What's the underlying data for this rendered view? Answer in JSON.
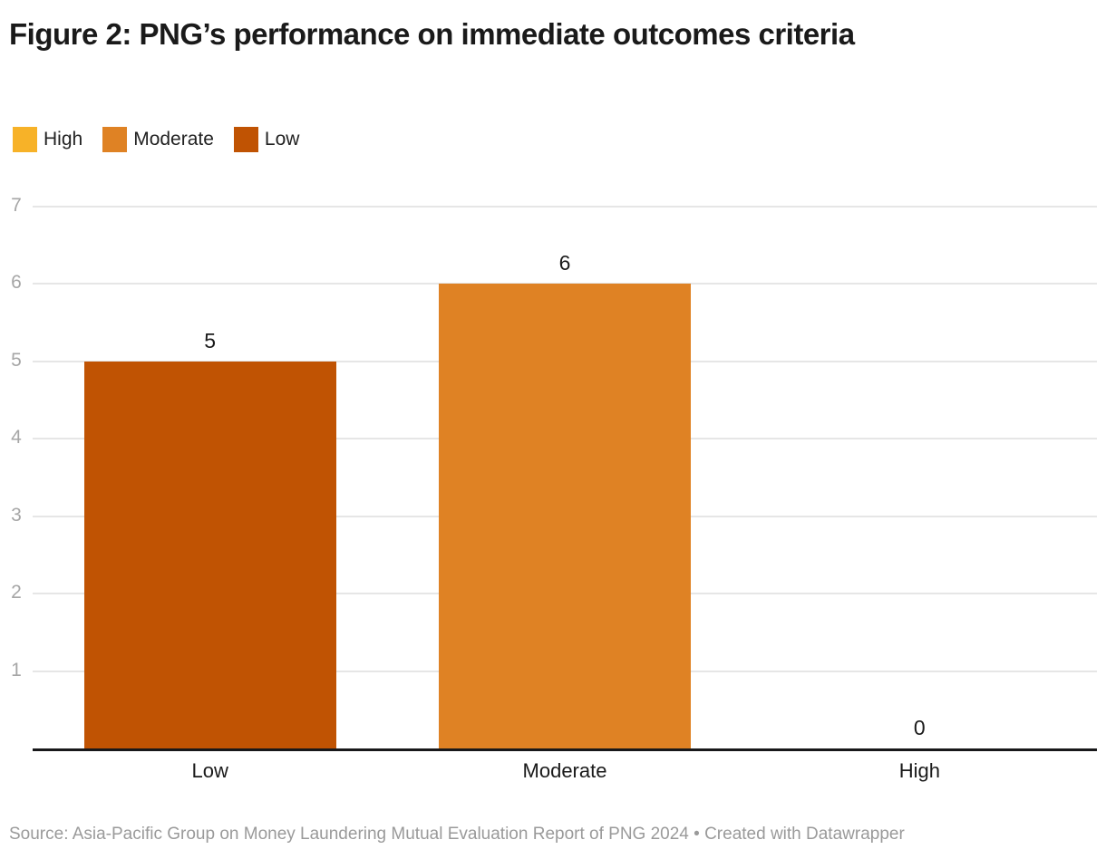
{
  "title": "Figure 2: PNG’s performance on immediate outcomes criteria",
  "legend": {
    "items": [
      {
        "label": "High",
        "color": "#F7B228"
      },
      {
        "label": "Moderate",
        "color": "#DF8224"
      },
      {
        "label": "Low",
        "color": "#C05303"
      }
    ]
  },
  "chart_data": {
    "type": "bar",
    "categories": [
      "Low",
      "Moderate",
      "High"
    ],
    "values": [
      5,
      6,
      0
    ],
    "bar_colors": [
      "#C05303",
      "#DF8224",
      "#F7B228"
    ],
    "value_labels": [
      "5",
      "6",
      "0"
    ],
    "title": "Figure 2: PNG’s performance on immediate outcomes criteria",
    "xlabel": "",
    "ylabel": "",
    "ylim": [
      0,
      7
    ],
    "yticks": [
      1,
      2,
      3,
      4,
      5,
      6,
      7
    ],
    "grid": true,
    "legend_position": "top",
    "legend_entries": [
      "High",
      "Moderate",
      "Low"
    ]
  },
  "colors": {
    "title_text": "#1a1a1a",
    "axis_tick_text": "#a6a6a6",
    "gridline": "#e6e6e6",
    "baseline": "#18181a",
    "source_text": "#9a9a9a",
    "background": "#ffffff"
  },
  "footer": {
    "source": "Source: Asia-Pacific Group on Money Laundering Mutual Evaluation Report of PNG 2024 • Created with Datawrapper"
  }
}
